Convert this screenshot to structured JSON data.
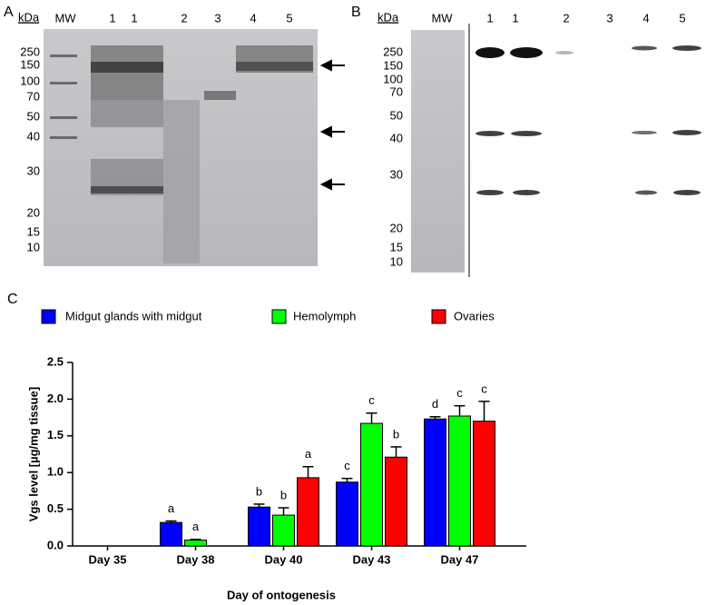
{
  "panel_a": {
    "letter": "A",
    "unit": "kDa",
    "marker_lane": "MW",
    "lanes": [
      "1",
      "1",
      "2",
      "3",
      "4",
      "5"
    ],
    "markers": [
      "250",
      "150",
      "100",
      "70",
      "50",
      "40",
      "30",
      "20",
      "15",
      "10"
    ]
  },
  "panel_b": {
    "letter": "B",
    "unit": "kDa",
    "marker_lane": "MW",
    "lanes": [
      "1",
      "1",
      "2",
      "3",
      "4",
      "5"
    ],
    "markers": [
      "250",
      "150",
      "100",
      "70",
      "50",
      "40",
      "30",
      "20",
      "15",
      "10"
    ]
  },
  "chart_data": {
    "type": "bar",
    "panel": "C",
    "y_label": "Vgs level [µg/mg tissue]",
    "x_label": "Day of ontogenesis",
    "categories": [
      "Day 35",
      "Day 38",
      "Day 40",
      "Day 43",
      "Day 47"
    ],
    "series": [
      {
        "name": "Midgut glands with midgut",
        "color": "#0000ff",
        "values": [
          null,
          0.32,
          0.53,
          0.87,
          1.73
        ],
        "errors": [
          null,
          0.02,
          0.04,
          0.05,
          0.03
        ],
        "labels": [
          null,
          "a",
          "b",
          "c",
          "d"
        ]
      },
      {
        "name": "Hemolymph",
        "color": "#00ff00",
        "values": [
          null,
          0.08,
          0.42,
          1.67,
          1.77
        ],
        "errors": [
          null,
          0.01,
          0.1,
          0.14,
          0.14
        ],
        "labels": [
          null,
          "a",
          "b",
          "c",
          "c"
        ]
      },
      {
        "name": "Ovaries",
        "color": "#ff0000",
        "values": [
          null,
          null,
          0.93,
          1.21,
          1.7
        ],
        "errors": [
          null,
          null,
          0.15,
          0.14,
          0.27
        ],
        "labels": [
          null,
          null,
          "a",
          "b",
          "c"
        ]
      }
    ],
    "ylim": [
      0,
      2.5
    ],
    "yticks": [
      {
        "value": 0,
        "label": "0.0"
      },
      {
        "value": 0.5,
        "label": "0.5"
      },
      {
        "value": 1,
        "label": "1.0"
      },
      {
        "value": 1.5,
        "label": "1.5"
      },
      {
        "value": 2,
        "label": "2.0"
      },
      {
        "value": 2.5,
        "label": "2.5"
      }
    ]
  }
}
